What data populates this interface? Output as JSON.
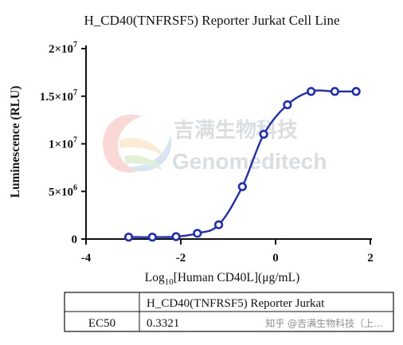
{
  "chart_data": {
    "type": "line",
    "title": "H_CD40(TNFRSF5) Reporter Jurkat Cell Line",
    "xlabel": {
      "prefix": "Log",
      "sub": "10",
      "rest": "[Human CD40L](μg/mL)"
    },
    "ylabel": "Luminescence (RLU)",
    "xlim": [
      -4,
      2
    ],
    "ylim": [
      0,
      20000000
    ],
    "x_ticks": [
      {
        "value": -4,
        "label": "-4"
      },
      {
        "value": -2,
        "label": "-2"
      },
      {
        "value": 0,
        "label": "0"
      },
      {
        "value": 2,
        "label": "2"
      }
    ],
    "y_ticks": [
      {
        "value": 0,
        "mant": "0",
        "exp": ""
      },
      {
        "value": 5000000,
        "mant": "5×10",
        "exp": "6"
      },
      {
        "value": 10000000,
        "mant": "1×10",
        "exp": "7"
      },
      {
        "value": 15000000,
        "mant": "1.5×10",
        "exp": "7"
      },
      {
        "value": 20000000,
        "mant": "2×10",
        "exp": "7"
      }
    ],
    "series": [
      {
        "color": "#1f2dbf",
        "points": [
          [
            -3.1,
            200000
          ],
          [
            -2.6,
            200000
          ],
          [
            -2.1,
            250000
          ],
          [
            -1.65,
            600000
          ],
          [
            -1.2,
            1500000
          ],
          [
            -0.7,
            5500000
          ],
          [
            -0.25,
            11000000
          ],
          [
            0.25,
            14100000
          ],
          [
            0.75,
            15500000
          ],
          [
            1.25,
            15500000
          ],
          [
            1.7,
            15500000
          ]
        ]
      }
    ],
    "grid": false,
    "legend": "none"
  },
  "table": {
    "header": [
      "",
      "H_CD40(TNFRSF5) Reporter Jurkat"
    ],
    "rows": [
      [
        "EC50",
        "0.3321"
      ]
    ]
  },
  "watermark": {
    "chinese": "吉满生物科技",
    "english": "Genomeditech"
  },
  "credit": "知乎 @吉满生物科技（上..."
}
